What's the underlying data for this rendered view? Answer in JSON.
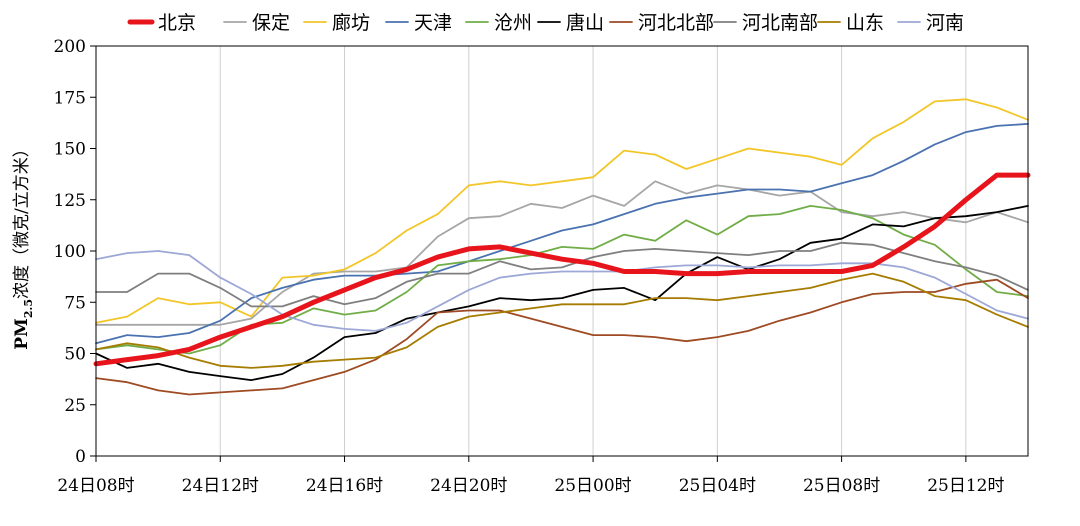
{
  "chart_data": {
    "type": "line",
    "ylabel_parts": {
      "base": "PM",
      "sub": "2.5",
      "rest": "浓度（微克/立方米）"
    },
    "ylim": [
      0,
      200
    ],
    "yticks": [
      0,
      25,
      50,
      75,
      100,
      125,
      150,
      175,
      200
    ],
    "xtick_labels": [
      "24日08时",
      "24日12时",
      "24日16时",
      "24日20时",
      "25日00时",
      "25日04时",
      "25日08时",
      "25日12时"
    ],
    "xtick_positions": [
      0,
      4,
      8,
      12,
      16,
      20,
      24,
      28
    ],
    "x_count": 31,
    "grid": "vertical",
    "legend_position": "top",
    "series": [
      {
        "name": "北京",
        "color": "#e8141c",
        "width": 5,
        "values": [
          45,
          47,
          49,
          52,
          58,
          63,
          68,
          75,
          81,
          87,
          91,
          97,
          101,
          102,
          99,
          96,
          94,
          90,
          90,
          89,
          89,
          90,
          90,
          90,
          90,
          93,
          102,
          112,
          125,
          137,
          137
        ]
      },
      {
        "name": "保定",
        "color": "#a6a6a6",
        "width": 1.8,
        "values": [
          64,
          64,
          64,
          64,
          64,
          67,
          80,
          89,
          90,
          90,
          92,
          107,
          116,
          117,
          123,
          121,
          127,
          122,
          134,
          128,
          132,
          130,
          127,
          129,
          119,
          117,
          119,
          116,
          114,
          119,
          114
        ]
      },
      {
        "name": "廊坊",
        "color": "#f2c628",
        "width": 1.8,
        "values": [
          65,
          68,
          77,
          74,
          75,
          68,
          87,
          88,
          91,
          99,
          110,
          118,
          132,
          134,
          132,
          134,
          136,
          149,
          147,
          140,
          145,
          150,
          148,
          146,
          142,
          155,
          163,
          173,
          174,
          170,
          164
        ]
      },
      {
        "name": "天津",
        "color": "#4a72b0",
        "width": 1.8,
        "values": [
          55,
          59,
          58,
          60,
          66,
          77,
          82,
          86,
          88,
          88,
          89,
          90,
          95,
          100,
          105,
          110,
          113,
          118,
          123,
          126,
          128,
          130,
          130,
          129,
          133,
          137,
          144,
          152,
          158,
          161,
          162
        ]
      },
      {
        "name": "沧州",
        "color": "#70ad47",
        "width": 1.8,
        "values": [
          52,
          54,
          52,
          50,
          54,
          64,
          65,
          72,
          69,
          71,
          80,
          93,
          95,
          96,
          98,
          102,
          101,
          108,
          105,
          115,
          108,
          117,
          118,
          122,
          120,
          116,
          108,
          103,
          91,
          80,
          78
        ]
      },
      {
        "name": "唐山",
        "color": "#000000",
        "width": 1.8,
        "values": [
          50,
          43,
          45,
          41,
          39,
          37,
          40,
          48,
          58,
          60,
          67,
          70,
          73,
          77,
          76,
          77,
          81,
          82,
          76,
          89,
          97,
          91,
          96,
          104,
          106,
          113,
          112,
          116,
          117,
          119,
          122
        ]
      },
      {
        "name": "河北北部",
        "color": "#9e4a23",
        "width": 1.8,
        "values": [
          38,
          36,
          32,
          30,
          31,
          32,
          33,
          37,
          41,
          47,
          57,
          70,
          71,
          71,
          67,
          63,
          59,
          59,
          58,
          56,
          58,
          61,
          66,
          70,
          75,
          79,
          80,
          80,
          84,
          86,
          77
        ]
      },
      {
        "name": "河北南部",
        "color": "#7f7f7f",
        "width": 1.8,
        "values": [
          80,
          80,
          89,
          89,
          82,
          73,
          73,
          78,
          74,
          77,
          85,
          89,
          89,
          95,
          91,
          92,
          97,
          100,
          101,
          100,
          99,
          98,
          100,
          100,
          104,
          103,
          99,
          95,
          92,
          88,
          81
        ]
      },
      {
        "name": "山东",
        "color": "#a67c00",
        "width": 1.8,
        "values": [
          52,
          55,
          53,
          48,
          44,
          43,
          44,
          46,
          47,
          48,
          53,
          63,
          68,
          70,
          72,
          74,
          74,
          74,
          77,
          77,
          76,
          78,
          80,
          82,
          86,
          89,
          85,
          78,
          76,
          69,
          63
        ]
      },
      {
        "name": "河南",
        "color": "#9da8d6",
        "width": 1.8,
        "values": [
          96,
          99,
          100,
          98,
          87,
          79,
          69,
          64,
          62,
          61,
          65,
          73,
          81,
          87,
          89,
          90,
          90,
          90,
          92,
          93,
          93,
          92,
          93,
          93,
          94,
          94,
          92,
          87,
          79,
          71,
          67
        ]
      }
    ]
  }
}
